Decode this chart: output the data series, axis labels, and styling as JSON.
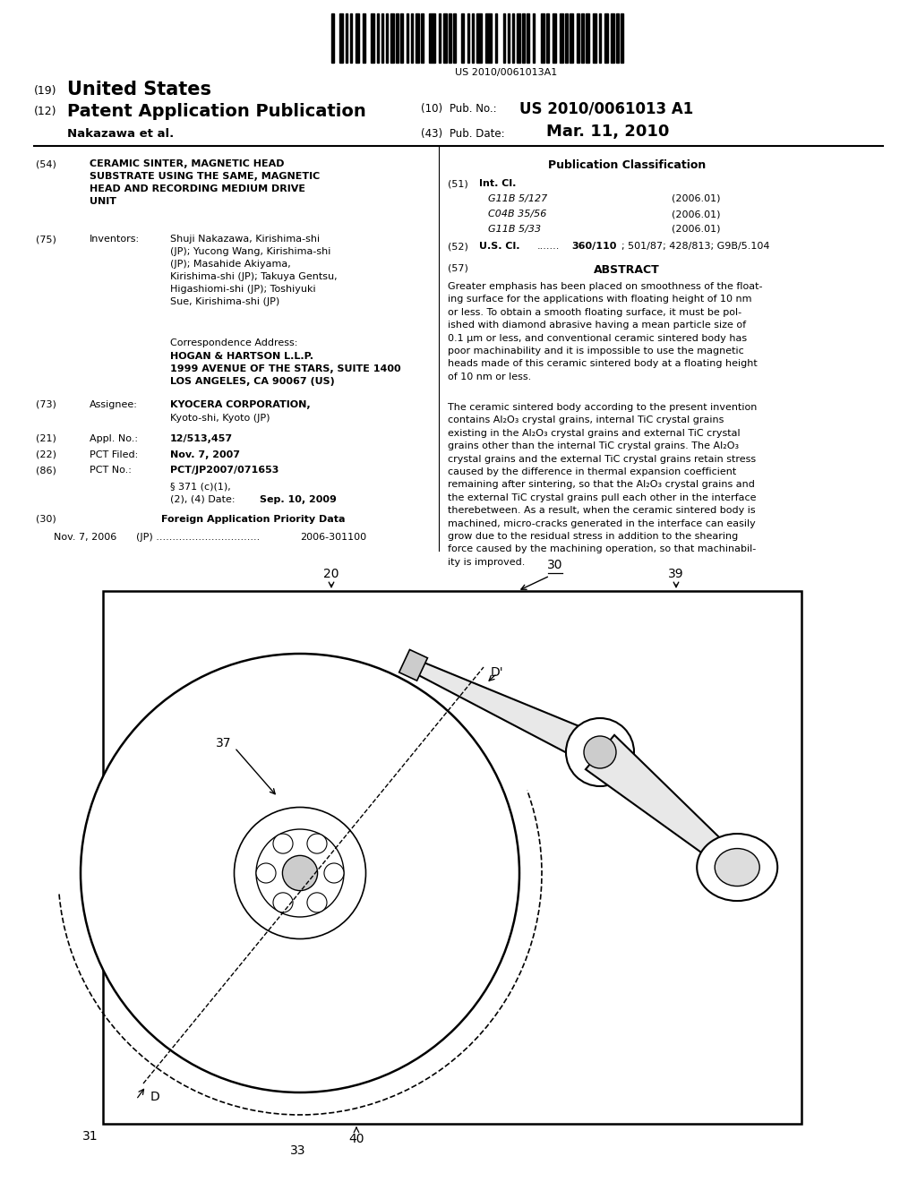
{
  "patent_number": "US 2010/0061013 A1",
  "pub_date": "Mar. 11, 2010",
  "bg_color": "#ffffff",
  "text_color": "#000000",
  "int_cl": [
    [
      "G11B 5/127",
      "(2006.01)"
    ],
    [
      "C04B 35/56",
      "(2006.01)"
    ],
    [
      "G11B 5/33",
      "(2006.01)"
    ]
  ]
}
